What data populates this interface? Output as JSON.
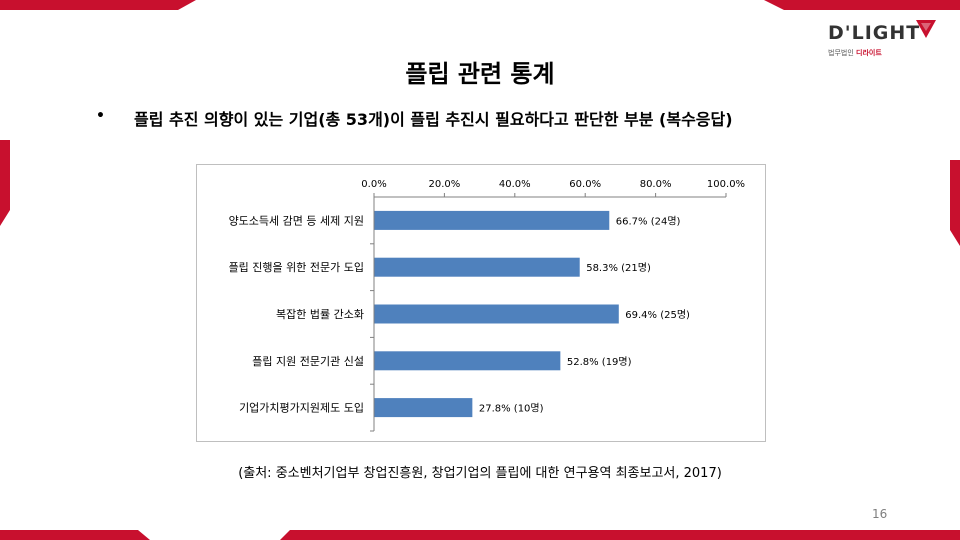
{
  "logo": {
    "wordmark": "D'LIGHT",
    "sub_prefix": "법무법인",
    "sub_name": "디라이트"
  },
  "slide": {
    "title": "플립 관련 통계",
    "bullet": "•",
    "subtitle": "플립 추진 의향이 있는 기업(총 53개)이 플립 추진시 필요하다고 판단한 부분 (복수응답)",
    "source": "(출처: 중소벤처기업부 창업진흥원, 창업기업의 플립에 대한 연구용역 최종보고서, 2017)",
    "page_number": "16"
  },
  "chart_data": {
    "type": "bar",
    "orientation": "horizontal",
    "categories": [
      "양도소득세 감면 등 세제 지원",
      "플립 진행을 위한 전문가 도입",
      "복잡한 법률 간소화",
      "플립 지원 전문기관 신설",
      "기업가치평가지원제도 도입"
    ],
    "values": [
      66.7,
      58.3,
      69.4,
      52.8,
      27.8
    ],
    "data_labels": [
      "66.7% (24명)",
      "58.3% (21명)",
      "69.4% (25명)",
      "52.8% (19명)",
      "27.8% (10명)"
    ],
    "x_ticks": [
      "0.0%",
      "20.0%",
      "40.0%",
      "60.0%",
      "80.0%",
      "100.0%"
    ],
    "xlim": [
      0,
      100
    ],
    "axis_position": "top",
    "grid": false,
    "bar_color": "#4f81bd"
  },
  "colors": {
    "accent": "#c8102e",
    "bar": "#4f81bd"
  }
}
